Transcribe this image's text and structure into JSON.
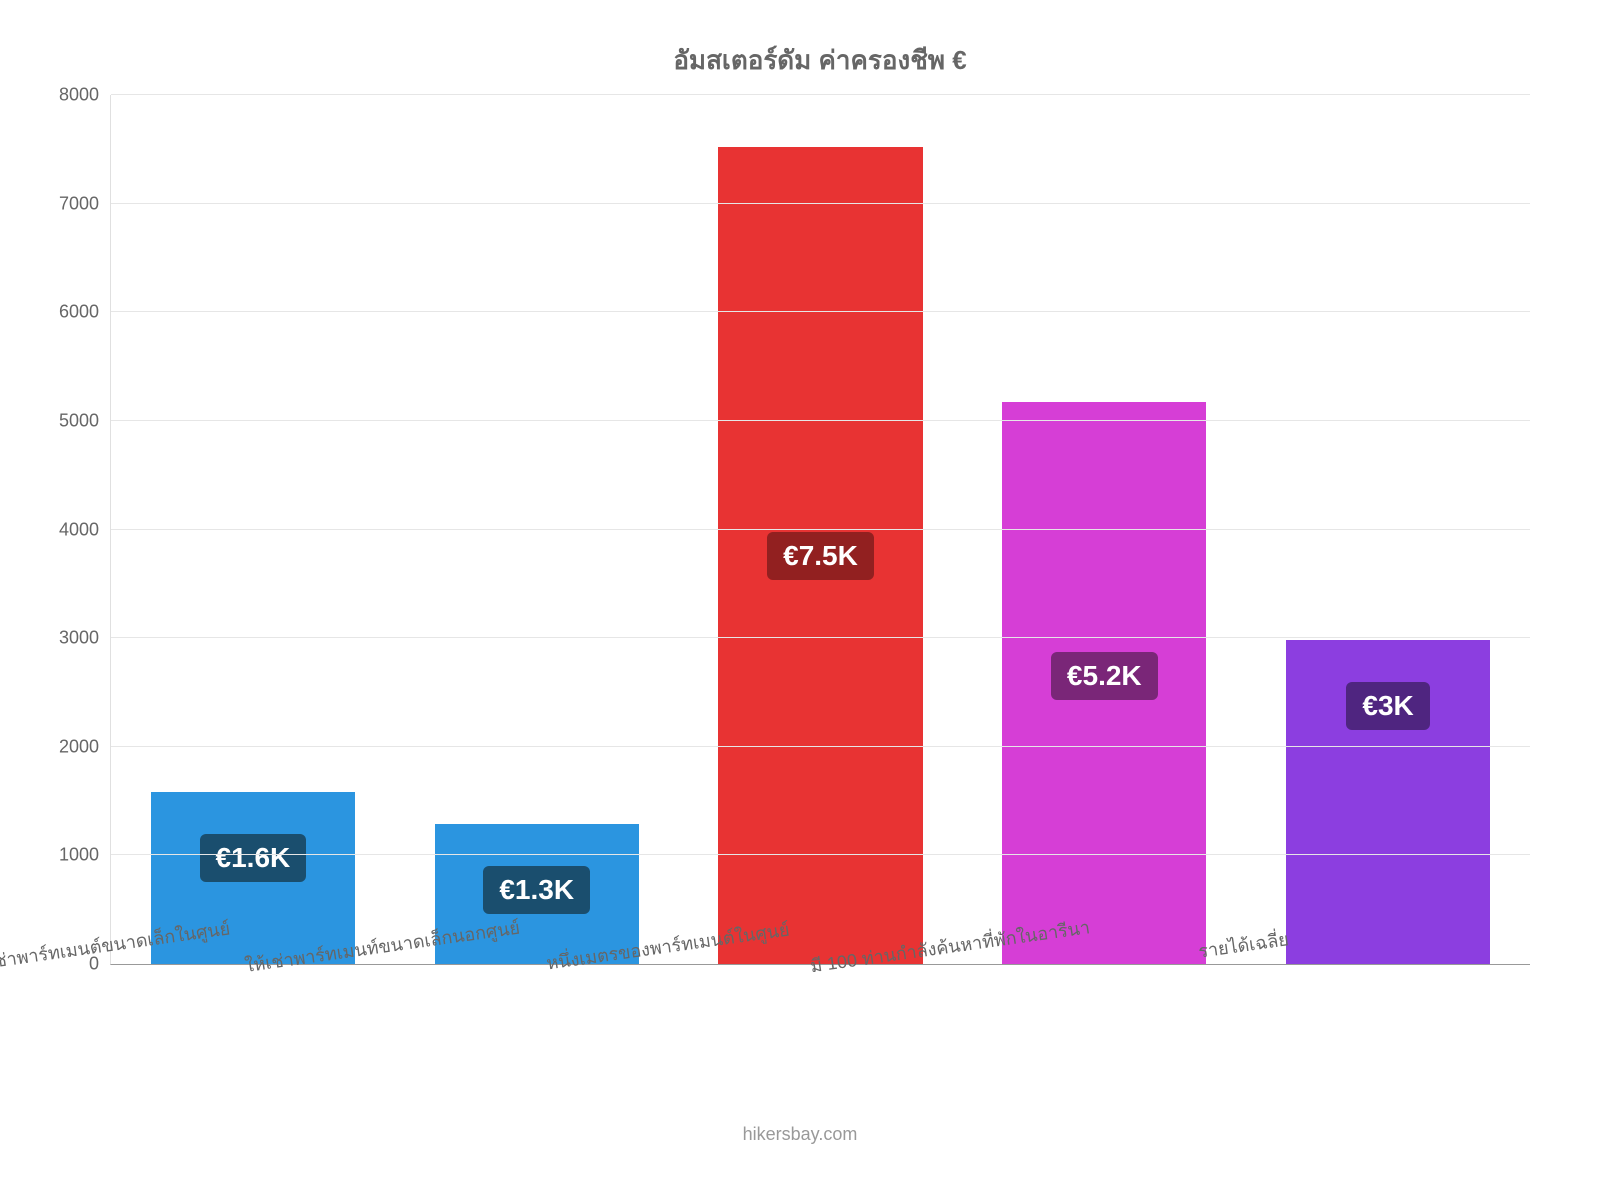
{
  "chart": {
    "type": "bar",
    "title": "อัมสเตอร์ดัม ค่าครองชีพ €",
    "title_fontsize": 26,
    "title_color": "#666666",
    "background_color": "#ffffff",
    "grid_color": "#e6e6e6",
    "axis_color": "#999999",
    "ylim": [
      0,
      8000
    ],
    "ytick_step": 1000,
    "ytick_labels": [
      "0",
      "1000",
      "2000",
      "3000",
      "4000",
      "5000",
      "6000",
      "7000",
      "8000"
    ],
    "ytick_fontsize": 18,
    "ytick_color": "#666666",
    "bar_width_ratio": 0.72,
    "categories": [
      "ให้เช่าพาร์ทเมนต์ขนาดเล็กในศูนย์",
      "ให้เช่าพาร์ทเมนท์ขนาดเล็กนอกศูนย์",
      "หนึ่งเมตรของพาร์ทเมนต์ในศูนย์",
      "มี 100 ท่านกำลังค้นหาที่พักในอารีนา",
      "รายได้เฉลี่ย"
    ],
    "xlabel_fontsize": 18,
    "xlabel_color": "#666666",
    "xlabel_rotation_deg": -8,
    "values": [
      1580,
      1290,
      7520,
      5170,
      2980
    ],
    "bar_colors": [
      "#2b95e0",
      "#2b95e0",
      "#e83333",
      "#d63ed6",
      "#8c3ee0"
    ],
    "value_labels": [
      "€1.6K",
      "€1.3K",
      "€7.5K",
      "€5.2K",
      "€3K"
    ],
    "badge_bg_colors": [
      "#1a4e6e",
      "#1a4e6e",
      "#922020",
      "#7a2678",
      "#4f2580"
    ],
    "badge_fontsize": 28,
    "badge_text_color": "#ffffff",
    "footer": "hikersbay.com",
    "footer_fontsize": 18,
    "footer_color": "#999999"
  }
}
